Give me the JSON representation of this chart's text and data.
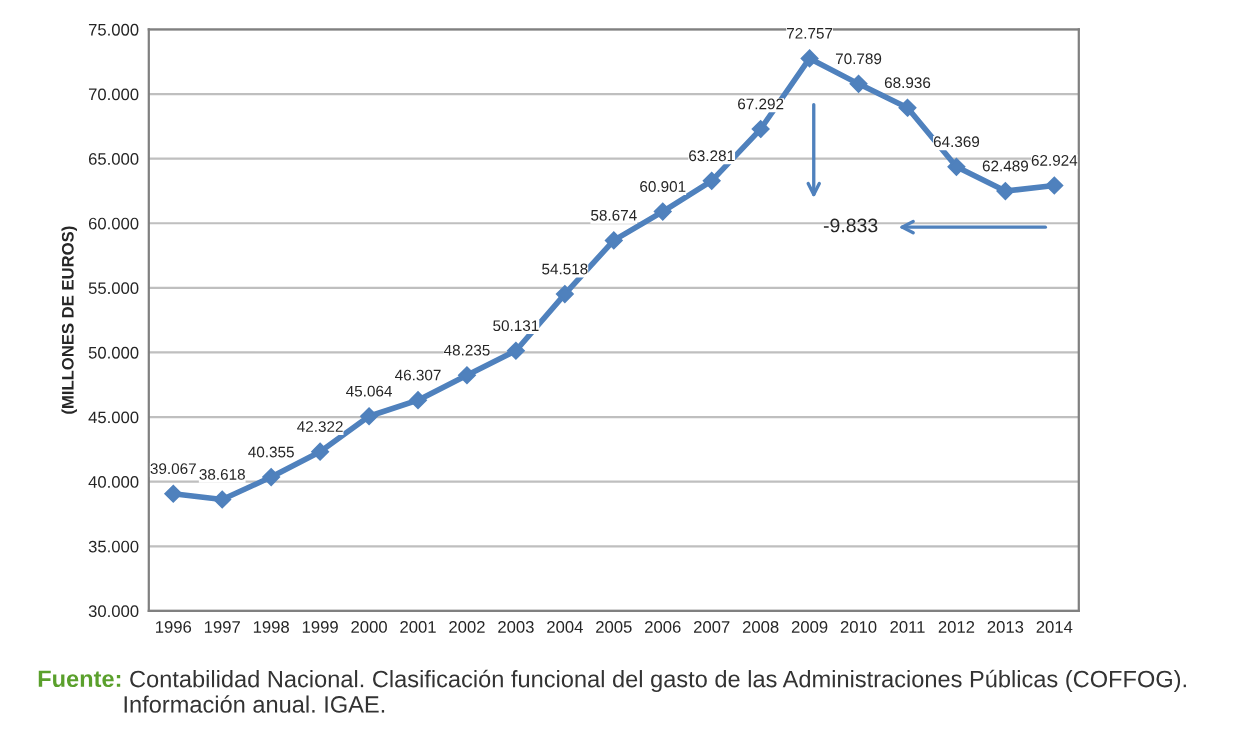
{
  "chart_data": {
    "type": "line",
    "ylabel": "(MILLONES DE EUROS)",
    "categories": [
      "1996",
      "1997",
      "1998",
      "1999",
      "2000",
      "2001",
      "2002",
      "2003",
      "2004",
      "2005",
      "2006",
      "2007",
      "2008",
      "2009",
      "2010",
      "2011",
      "2012",
      "2013",
      "2014"
    ],
    "series": [
      {
        "color": "#4f81bd",
        "values": [
          39067,
          38618,
          40355,
          42322,
          45064,
          46307,
          48235,
          50131,
          54518,
          58674,
          60901,
          63281,
          67292,
          72757,
          70789,
          68936,
          64369,
          62489,
          62924
        ],
        "value_labels": [
          "39.067",
          "38.618",
          "40.355",
          "42.322",
          "45.064",
          "46.307",
          "48.235",
          "50.131",
          "54.518",
          "58.674",
          "60.901",
          "63.281",
          "67.292",
          "72.757",
          "70.789",
          "68.936",
          "64.369",
          "62.489",
          "62.924"
        ]
      }
    ],
    "ylim": [
      30000,
      75000
    ],
    "yticks": [
      {
        "value": 30000,
        "label": "30.000"
      },
      {
        "value": 35000,
        "label": "35.000"
      },
      {
        "value": 40000,
        "label": "40.000"
      },
      {
        "value": 45000,
        "label": "45.000"
      },
      {
        "value": 50000,
        "label": "50.000"
      },
      {
        "value": 55000,
        "label": "55.000"
      },
      {
        "value": 60000,
        "label": "60.000"
      },
      {
        "value": 65000,
        "label": "65.000"
      },
      {
        "value": 70000,
        "label": "70.000"
      },
      {
        "value": 75000,
        "label": "75.000"
      }
    ],
    "grid": "y",
    "marker": "diamond",
    "line_style": "solid",
    "legend": false,
    "annotations": [
      "-9.833",
      "Fuente: Contabilidad Nacional. Clasificación funcional del gasto de las Administraciones Públicas (COFFOG). Información anual. IGAE."
    ]
  }
}
